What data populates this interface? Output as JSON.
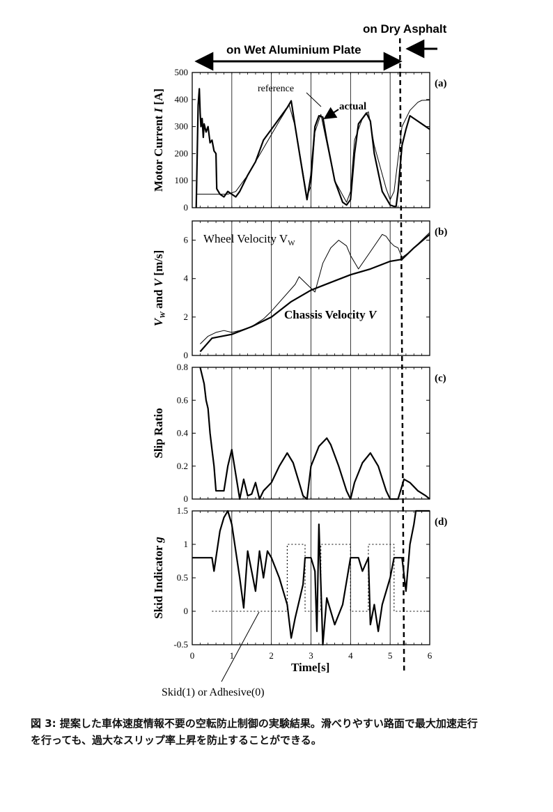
{
  "header": {
    "dry_label": "on Dry Asphalt",
    "wet_label": "on Wet Aluminium Plate"
  },
  "xaxis": {
    "label": "Time[s]",
    "range": [
      0,
      6
    ],
    "ticks": [
      "0",
      "1",
      "2",
      "3",
      "4",
      "5",
      "6"
    ]
  },
  "boundary_time": 5.3,
  "panels": [
    {
      "id": "a",
      "tag": "(a)",
      "ylabel_parts": [
        "Motor Current ",
        "I",
        " [A]"
      ],
      "ylim": [
        0,
        500
      ],
      "ticks": [
        "0",
        "100",
        "200",
        "300",
        "400",
        "500"
      ],
      "tick_values": [
        0,
        100,
        200,
        300,
        400,
        500
      ],
      "annotations": [
        "reference",
        "actual"
      ]
    },
    {
      "id": "b",
      "tag": "(b)",
      "ylabel_parts": [
        "V",
        "W",
        " and ",
        "V",
        " [m/s]"
      ],
      "ylim": [
        0,
        7
      ],
      "ticks": [
        "0",
        "2",
        "4",
        "6"
      ],
      "tick_values": [
        0,
        2,
        4,
        6
      ],
      "annotations": [
        "Wheel Velocity V",
        "W",
        "Chassis Velocity ",
        "V"
      ]
    },
    {
      "id": "c",
      "tag": "(c)",
      "ylabel_parts": [
        "Slip Ratio"
      ],
      "ylim": [
        0,
        0.8
      ],
      "ticks": [
        "0",
        "0.2",
        "0.4",
        "0.6",
        "0.8"
      ],
      "tick_values": [
        0,
        0.2,
        0.4,
        0.6,
        0.8
      ],
      "annotations": []
    },
    {
      "id": "d",
      "tag": "(d)",
      "ylabel_parts": [
        "Skid Indicator ",
        "g"
      ],
      "ylim": [
        -0.5,
        1.5
      ],
      "ticks": [
        "-0.5",
        "0",
        "0.5",
        "1",
        "1.5"
      ],
      "tick_values": [
        -0.5,
        0,
        0.5,
        1,
        1.5
      ],
      "annotations": [
        "Skid(1) or Adhesive(0)"
      ]
    }
  ],
  "chart_data": [
    {
      "type": "line",
      "series": [
        {
          "style": "reference",
          "x": [
            0.1,
            0.11,
            0.4,
            0.41,
            0.5,
            0.6,
            0.7,
            0.9,
            1.1,
            1.4,
            1.8,
            2.2,
            2.45,
            2.6,
            2.8,
            2.9,
            3.0,
            3.1,
            3.25,
            3.4,
            3.6,
            3.9,
            4.0,
            4.1,
            4.3,
            4.45,
            4.6,
            4.9,
            5.0,
            5.1,
            5.3,
            5.5,
            5.7,
            5.8,
            6.0
          ],
          "y": [
            0,
            50,
            50,
            50,
            50,
            50,
            50,
            50,
            60,
            120,
            220,
            320,
            380,
            300,
            130,
            40,
            80,
            280,
            345,
            240,
            100,
            20,
            60,
            250,
            330,
            355,
            230,
            70,
            30,
            60,
            300,
            360,
            390,
            397,
            398
          ]
        },
        {
          "style": "actual",
          "x": [
            0.1,
            0.15,
            0.18,
            0.2,
            0.22,
            0.25,
            0.28,
            0.3,
            0.35,
            0.4,
            0.45,
            0.5,
            0.55,
            0.6,
            0.62,
            0.7,
            0.8,
            0.9,
            1.0,
            1.1,
            1.2,
            1.4,
            1.6,
            1.8,
            2.0,
            2.2,
            2.4,
            2.5,
            2.6,
            2.8,
            2.9,
            3.0,
            3.1,
            3.2,
            3.3,
            3.4,
            3.6,
            3.8,
            3.9,
            4.0,
            4.1,
            4.2,
            4.4,
            4.5,
            4.6,
            4.8,
            5.0,
            5.1,
            5.15,
            5.2,
            5.3,
            5.4,
            5.5,
            5.6,
            5.8,
            6.0
          ],
          "y": [
            0,
            380,
            440,
            350,
            300,
            330,
            260,
            310,
            280,
            300,
            240,
            250,
            210,
            200,
            70,
            50,
            40,
            60,
            50,
            40,
            60,
            120,
            170,
            250,
            290,
            330,
            370,
            395,
            300,
            120,
            30,
            120,
            300,
            340,
            335,
            250,
            100,
            20,
            10,
            30,
            200,
            310,
            350,
            320,
            200,
            60,
            10,
            5,
            5,
            60,
            230,
            290,
            340,
            330,
            310,
            290
          ]
        }
      ]
    },
    {
      "type": "line",
      "series": [
        {
          "name": "Wheel Velocity V",
          "x": [
            0.2,
            0.3,
            0.4,
            0.6,
            0.8,
            1.0,
            1.2,
            1.5,
            1.8,
            2.0,
            2.3,
            2.6,
            2.7,
            2.9,
            3.1,
            3.3,
            3.5,
            3.7,
            3.9,
            4.0,
            4.2,
            4.5,
            4.7,
            4.8,
            4.9,
            5.0,
            5.1,
            5.2,
            5.3,
            5.5,
            5.8,
            6.0
          ],
          "y": [
            0.6,
            0.8,
            1.0,
            1.2,
            1.3,
            1.2,
            1.3,
            1.5,
            1.9,
            2.3,
            3.0,
            3.7,
            4.1,
            3.7,
            3.3,
            4.8,
            5.6,
            6.0,
            5.7,
            5.2,
            4.5,
            5.4,
            6.0,
            6.3,
            6.2,
            5.9,
            5.7,
            5.6,
            5.1,
            5.4,
            6.0,
            6.4
          ]
        },
        {
          "name": "Chassis Velocity V",
          "x": [
            0.2,
            0.5,
            1.0,
            1.5,
            2.0,
            2.5,
            3.0,
            3.5,
            4.0,
            4.5,
            5.0,
            5.3,
            5.6,
            6.0
          ],
          "y": [
            0.2,
            0.9,
            1.1,
            1.5,
            2.0,
            2.8,
            3.4,
            3.8,
            4.2,
            4.5,
            4.9,
            5.0,
            5.6,
            6.3
          ]
        }
      ]
    },
    {
      "type": "line",
      "series": [
        {
          "x": [
            0.2,
            0.3,
            0.35,
            0.4,
            0.45,
            0.5,
            0.55,
            0.6,
            0.8,
            0.9,
            1.0,
            1.1,
            1.2,
            1.3,
            1.4,
            1.5,
            1.6,
            1.7,
            1.8,
            2.0,
            2.2,
            2.4,
            2.55,
            2.7,
            2.8,
            2.9,
            3.0,
            3.2,
            3.4,
            3.5,
            3.7,
            3.9,
            4.0,
            4.1,
            4.3,
            4.5,
            4.7,
            4.9,
            5.0,
            5.1,
            5.2,
            5.35,
            5.5,
            5.7,
            5.9,
            6.0
          ],
          "y": [
            0.8,
            0.7,
            0.6,
            0.55,
            0.4,
            0.3,
            0.2,
            0.05,
            0.05,
            0.2,
            0.3,
            0.15,
            0,
            0.12,
            0.02,
            0.03,
            0.1,
            0,
            0.05,
            0.1,
            0.2,
            0.28,
            0.22,
            0.1,
            0.02,
            0,
            0.2,
            0.32,
            0.37,
            0.33,
            0.2,
            0.05,
            0,
            0.1,
            0.22,
            0.28,
            0.2,
            0.05,
            0,
            0,
            0,
            0.12,
            0.1,
            0.05,
            0.02,
            0
          ]
        }
      ]
    },
    {
      "type": "line",
      "series": [
        {
          "style": "indicator",
          "x": [
            0.5,
            0.5,
            2.4,
            2.4,
            2.85,
            2.85,
            3.25,
            3.25,
            4.0,
            4.0,
            4.45,
            4.45,
            5.1,
            5.1,
            6.0
          ],
          "y": [
            0,
            0,
            0,
            1,
            1,
            0,
            0,
            1,
            1,
            0,
            0,
            1,
            1,
            0,
            0
          ]
        },
        {
          "style": "g",
          "x": [
            0,
            0.5,
            0.55,
            0.6,
            0.7,
            0.8,
            0.9,
            1.0,
            1.1,
            1.2,
            1.3,
            1.4,
            1.5,
            1.6,
            1.7,
            1.8,
            1.9,
            2.0,
            2.2,
            2.4,
            2.5,
            2.6,
            2.8,
            2.85,
            3.0,
            3.1,
            3.15,
            3.2,
            3.3,
            3.4,
            3.6,
            3.8,
            4.0,
            4.2,
            4.3,
            4.45,
            4.5,
            4.6,
            4.7,
            4.8,
            5.0,
            5.1,
            5.2,
            5.3,
            5.4,
            5.5,
            5.6,
            5.65,
            5.8,
            6.0
          ],
          "y": [
            0.8,
            0.8,
            0.6,
            0.8,
            1.2,
            1.4,
            1.5,
            1.3,
            0.9,
            0.5,
            0.05,
            0.9,
            0.6,
            0.3,
            0.9,
            0.5,
            0.9,
            0.8,
            0.5,
            0.1,
            -0.4,
            -0.1,
            0.4,
            0.8,
            0.8,
            0.6,
            -0.3,
            1.3,
            -0.5,
            0.2,
            -0.2,
            0.1,
            0.8,
            0.8,
            0.6,
            0.8,
            -0.2,
            0.1,
            -0.3,
            0.1,
            0.5,
            0.8,
            0.8,
            0.8,
            0.3,
            1.0,
            1.3,
            1.5,
            1.5,
            1.5
          ]
        }
      ]
    }
  ],
  "caption": {
    "line1": "図 3: 提案した車体速度情報不要の空転防止制御の実験結果。滑べりやすい路面で最大加速走行",
    "line2": "を行っても、過大なスリップ率上昇を防止することができる。"
  }
}
